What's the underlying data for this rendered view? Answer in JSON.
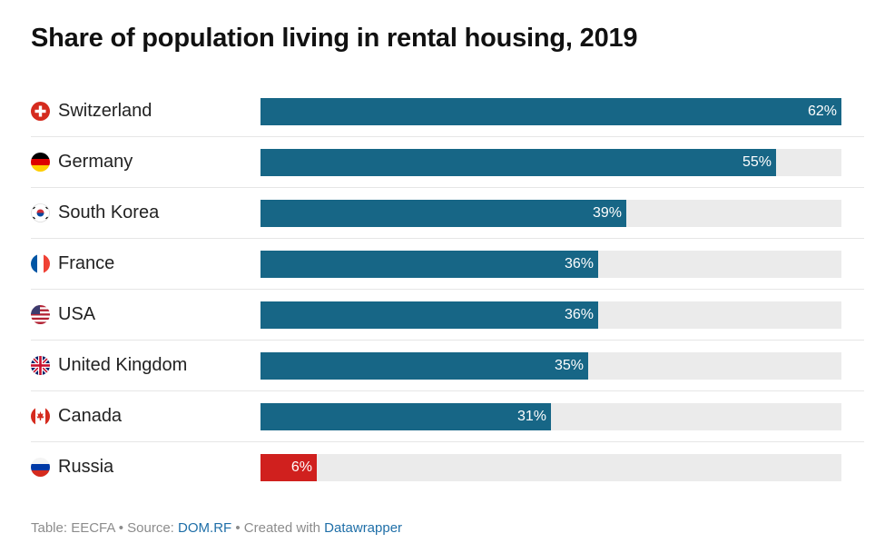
{
  "title": "Share of population living in rental housing, 2019",
  "chart_data": {
    "type": "bar",
    "orientation": "horizontal",
    "categories": [
      "Switzerland",
      "Germany",
      "South Korea",
      "France",
      "USA",
      "United Kingdom",
      "Canada",
      "Russia"
    ],
    "values": [
      62,
      55,
      39,
      36,
      36,
      35,
      31,
      6
    ],
    "value_labels": [
      "62%",
      "55%",
      "39%",
      "36%",
      "36%",
      "35%",
      "31%",
      "6%"
    ],
    "unit": "%",
    "xlim": [
      0,
      62
    ],
    "grid": false,
    "colors": {
      "default": "#176686",
      "highlight": "#d0201e",
      "track": "#ebebeb"
    },
    "highlight_category": "Russia",
    "flag_icons": [
      "switzerland-flag-icon",
      "germany-flag-icon",
      "south-korea-flag-icon",
      "france-flag-icon",
      "usa-flag-icon",
      "united-kingdom-flag-icon",
      "canada-flag-icon",
      "russia-flag-icon"
    ]
  },
  "footer": {
    "table_text": "Table: EECFA",
    "sep1": " • ",
    "source_label": "Source: ",
    "source_link": "DOM.RF",
    "sep2": " • ",
    "created_label": "Created with ",
    "created_link": "Datawrapper"
  }
}
